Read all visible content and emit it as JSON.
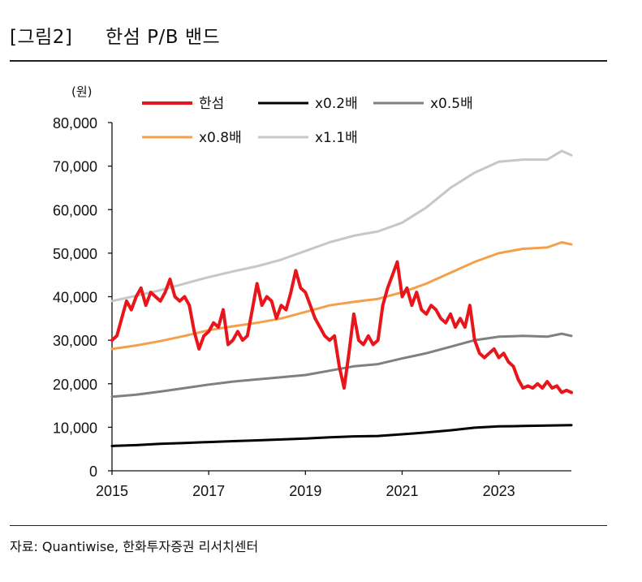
{
  "figure": {
    "label": "[그림2]",
    "title": "한섬 P/B 밴드",
    "source": "자료: Quantiwise, 한화투자증권 리서치센터"
  },
  "chart_data": {
    "type": "line",
    "title": "한섬 P/B 밴드",
    "unit": "(원)",
    "xlabel": "",
    "ylabel": "(원)",
    "xlim": [
      2015.0,
      2024.5
    ],
    "ylim": [
      0,
      80000
    ],
    "yticks": [
      0,
      10000,
      20000,
      30000,
      40000,
      50000,
      60000,
      70000,
      80000
    ],
    "ytick_labels": [
      "0",
      "10,000",
      "20,000",
      "30,000",
      "40,000",
      "50,000",
      "60,000",
      "70,000",
      "80,000"
    ],
    "xticks": [
      2015,
      2017,
      2019,
      2021,
      2023
    ],
    "xtick_labels": [
      "2015",
      "2017",
      "2019",
      "2021",
      "2023"
    ],
    "legend_position": "top",
    "grid": false,
    "series": [
      {
        "name": "한섬",
        "color": "#e8161b",
        "x": [
          2015.0,
          2015.1,
          2015.2,
          2015.3,
          2015.4,
          2015.5,
          2015.6,
          2015.7,
          2015.8,
          2015.9,
          2016.0,
          2016.1,
          2016.2,
          2016.3,
          2016.4,
          2016.5,
          2016.6,
          2016.7,
          2016.8,
          2016.9,
          2017.0,
          2017.1,
          2017.2,
          2017.3,
          2017.4,
          2017.5,
          2017.6,
          2017.7,
          2017.8,
          2017.9,
          2018.0,
          2018.1,
          2018.2,
          2018.3,
          2018.4,
          2018.5,
          2018.6,
          2018.7,
          2018.8,
          2018.9,
          2019.0,
          2019.1,
          2019.2,
          2019.3,
          2019.4,
          2019.5,
          2019.6,
          2019.7,
          2019.8,
          2019.9,
          2020.0,
          2020.1,
          2020.2,
          2020.3,
          2020.4,
          2020.5,
          2020.6,
          2020.7,
          2020.8,
          2020.9,
          2021.0,
          2021.1,
          2021.2,
          2021.3,
          2021.4,
          2021.5,
          2021.6,
          2021.7,
          2021.8,
          2021.9,
          2022.0,
          2022.1,
          2022.2,
          2022.3,
          2022.4,
          2022.5,
          2022.6,
          2022.7,
          2022.8,
          2022.9,
          2023.0,
          2023.1,
          2023.2,
          2023.3,
          2023.4,
          2023.5,
          2023.6,
          2023.7,
          2023.8,
          2023.9,
          2024.0,
          2024.1,
          2024.2,
          2024.3,
          2024.4,
          2024.5
        ],
        "values": [
          30000,
          31000,
          35000,
          39000,
          37000,
          40000,
          42000,
          38000,
          41000,
          40000,
          39000,
          41000,
          44000,
          40000,
          39000,
          40000,
          38000,
          32000,
          28000,
          31000,
          32000,
          34000,
          33000,
          37000,
          29000,
          30000,
          32000,
          30000,
          31000,
          37000,
          43000,
          38000,
          40000,
          39000,
          35000,
          38000,
          37000,
          41000,
          46000,
          42000,
          41000,
          38000,
          35000,
          33000,
          31000,
          30000,
          31000,
          24000,
          19000,
          27000,
          36000,
          30000,
          29000,
          31000,
          29000,
          30000,
          38000,
          42000,
          45000,
          48000,
          40000,
          42000,
          38000,
          41000,
          37000,
          36000,
          38000,
          37000,
          35000,
          34000,
          36000,
          33000,
          35000,
          33000,
          38000,
          30000,
          27000,
          26000,
          27000,
          28000,
          26000,
          27000,
          25000,
          24000,
          21000,
          19000,
          19500,
          19000,
          20000,
          19000,
          20500,
          19000,
          19500,
          18000,
          18500,
          18000
        ]
      },
      {
        "name": "x0.2배",
        "color": "#000000",
        "x": [
          2015.0,
          2015.5,
          2016.0,
          2016.5,
          2017.0,
          2017.5,
          2018.0,
          2018.5,
          2019.0,
          2019.5,
          2020.0,
          2020.5,
          2021.0,
          2021.5,
          2022.0,
          2022.5,
          2023.0,
          2023.5,
          2024.0,
          2024.5
        ],
        "values": [
          5700,
          5900,
          6200,
          6400,
          6600,
          6800,
          7000,
          7200,
          7400,
          7700,
          7900,
          8000,
          8400,
          8800,
          9300,
          9900,
          10200,
          10300,
          10400,
          10500
        ]
      },
      {
        "name": "x0.5배",
        "color": "#808080",
        "x": [
          2015.0,
          2015.5,
          2016.0,
          2016.5,
          2017.0,
          2017.5,
          2018.0,
          2018.5,
          2019.0,
          2019.5,
          2020.0,
          2020.5,
          2021.0,
          2021.5,
          2022.0,
          2022.5,
          2023.0,
          2023.5,
          2024.0,
          2024.3,
          2024.5
        ],
        "values": [
          17000,
          17500,
          18200,
          19000,
          19800,
          20500,
          21000,
          21500,
          22000,
          23000,
          24000,
          24500,
          25800,
          27000,
          28500,
          30000,
          30800,
          31000,
          30800,
          31500,
          31000
        ]
      },
      {
        "name": "x0.8배",
        "color": "#f4a04b",
        "x": [
          2015.0,
          2015.5,
          2016.0,
          2016.5,
          2017.0,
          2017.5,
          2018.0,
          2018.5,
          2019.0,
          2019.5,
          2020.0,
          2020.5,
          2021.0,
          2021.5,
          2022.0,
          2022.5,
          2023.0,
          2023.5,
          2024.0,
          2024.3,
          2024.5
        ],
        "values": [
          28000,
          28800,
          29800,
          31000,
          32300,
          33200,
          34000,
          35000,
          36500,
          38000,
          38800,
          39500,
          41000,
          43000,
          45500,
          48000,
          50000,
          51000,
          51300,
          52500,
          52000
        ]
      },
      {
        "name": "x1.1배",
        "color": "#c7c7c7",
        "x": [
          2015.0,
          2015.5,
          2016.0,
          2016.5,
          2017.0,
          2017.5,
          2018.0,
          2018.5,
          2019.0,
          2019.5,
          2020.0,
          2020.5,
          2021.0,
          2021.5,
          2022.0,
          2022.5,
          2023.0,
          2023.5,
          2024.0,
          2024.3,
          2024.5
        ],
        "values": [
          39000,
          40200,
          41500,
          43000,
          44500,
          45800,
          47000,
          48500,
          50500,
          52500,
          54000,
          55000,
          57000,
          60500,
          65000,
          68500,
          71000,
          71500,
          71500,
          73500,
          72500
        ]
      }
    ]
  }
}
